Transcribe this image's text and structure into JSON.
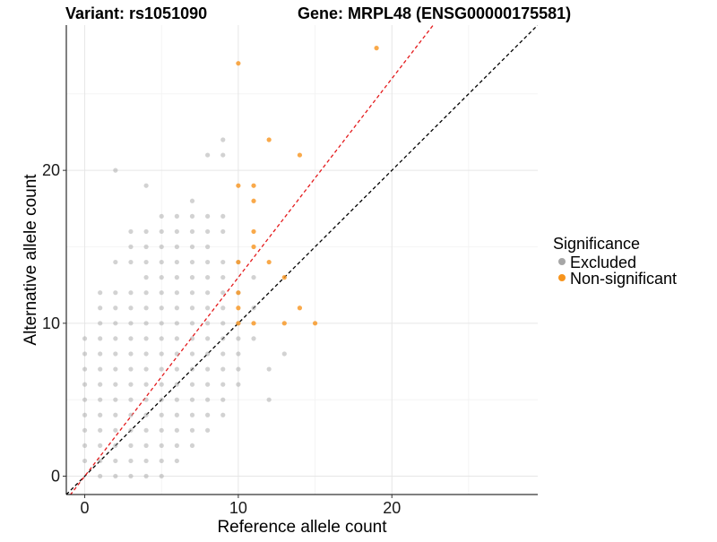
{
  "chart_data": {
    "type": "scatter",
    "title_left": "Variant: rs1051090",
    "title_right": "Gene: MRPL48 (ENSG00000175581)",
    "xlabel": "Reference allele count",
    "ylabel": "Alternative allele count",
    "xlim": [
      -1.2,
      29.5
    ],
    "ylim": [
      -1.2,
      29.5
    ],
    "x_ticks": [
      0,
      10,
      20
    ],
    "y_ticks": [
      0,
      10,
      20
    ],
    "grid": true,
    "legend": {
      "title": "Significance",
      "position": "right",
      "items": [
        {
          "label": "Excluded",
          "color": "#a6a6a6"
        },
        {
          "label": "Non-significant",
          "color": "#f7941d"
        }
      ]
    },
    "reference_lines": [
      {
        "name": "y = x",
        "slope": 1,
        "intercept": 0,
        "color": "#000000",
        "style": "dashed"
      },
      {
        "name": "fit",
        "slope": 1.3,
        "intercept": 0,
        "color": "#e41a1c",
        "style": "dashed"
      }
    ],
    "series": [
      {
        "name": "Excluded",
        "color": "#a6a6a6",
        "points": [
          [
            0,
            9
          ],
          [
            0,
            8
          ],
          [
            0,
            7
          ],
          [
            0,
            6
          ],
          [
            0,
            5
          ],
          [
            0,
            4
          ],
          [
            0,
            3
          ],
          [
            0,
            2
          ],
          [
            0,
            1
          ],
          [
            1,
            12
          ],
          [
            1,
            11
          ],
          [
            1,
            10
          ],
          [
            1,
            9
          ],
          [
            1,
            8
          ],
          [
            1,
            7
          ],
          [
            1,
            6
          ],
          [
            1,
            5
          ],
          [
            1,
            4
          ],
          [
            1,
            3
          ],
          [
            1,
            2
          ],
          [
            1,
            1
          ],
          [
            1,
            0
          ],
          [
            2,
            20
          ],
          [
            2,
            14
          ],
          [
            2,
            12
          ],
          [
            2,
            11
          ],
          [
            2,
            10
          ],
          [
            2,
            9
          ],
          [
            2,
            8
          ],
          [
            2,
            7
          ],
          [
            2,
            6
          ],
          [
            2,
            5
          ],
          [
            2,
            4
          ],
          [
            2,
            3
          ],
          [
            2,
            2
          ],
          [
            2,
            1
          ],
          [
            2,
            0
          ],
          [
            3,
            16
          ],
          [
            3,
            15
          ],
          [
            3,
            14
          ],
          [
            3,
            12
          ],
          [
            3,
            11
          ],
          [
            3,
            10
          ],
          [
            3,
            9
          ],
          [
            3,
            8
          ],
          [
            3,
            7
          ],
          [
            3,
            6
          ],
          [
            3,
            5
          ],
          [
            3,
            4
          ],
          [
            3,
            3
          ],
          [
            3,
            2
          ],
          [
            3,
            1
          ],
          [
            3,
            0
          ],
          [
            4,
            19
          ],
          [
            4,
            16
          ],
          [
            4,
            15
          ],
          [
            4,
            14
          ],
          [
            4,
            13
          ],
          [
            4,
            12
          ],
          [
            4,
            11
          ],
          [
            4,
            10
          ],
          [
            4,
            9
          ],
          [
            4,
            8
          ],
          [
            4,
            7
          ],
          [
            4,
            6
          ],
          [
            4,
            5
          ],
          [
            4,
            4
          ],
          [
            4,
            3
          ],
          [
            4,
            2
          ],
          [
            4,
            1
          ],
          [
            4,
            0
          ],
          [
            5,
            17
          ],
          [
            5,
            16
          ],
          [
            5,
            15
          ],
          [
            5,
            14
          ],
          [
            5,
            13
          ],
          [
            5,
            12
          ],
          [
            5,
            11
          ],
          [
            5,
            10
          ],
          [
            5,
            9
          ],
          [
            5,
            8
          ],
          [
            5,
            7
          ],
          [
            5,
            6
          ],
          [
            5,
            5
          ],
          [
            5,
            4
          ],
          [
            5,
            3
          ],
          [
            5,
            2
          ],
          [
            5,
            1
          ],
          [
            5,
            0
          ],
          [
            6,
            17
          ],
          [
            6,
            16
          ],
          [
            6,
            15
          ],
          [
            6,
            14
          ],
          [
            6,
            13
          ],
          [
            6,
            12
          ],
          [
            6,
            11
          ],
          [
            6,
            10
          ],
          [
            6,
            9
          ],
          [
            6,
            8
          ],
          [
            6,
            7
          ],
          [
            6,
            6
          ],
          [
            6,
            5
          ],
          [
            6,
            4
          ],
          [
            6,
            3
          ],
          [
            6,
            2
          ],
          [
            6,
            1
          ],
          [
            7,
            18
          ],
          [
            7,
            17
          ],
          [
            7,
            16
          ],
          [
            7,
            15
          ],
          [
            7,
            14
          ],
          [
            7,
            13
          ],
          [
            7,
            12
          ],
          [
            7,
            11
          ],
          [
            7,
            10
          ],
          [
            7,
            9
          ],
          [
            7,
            8
          ],
          [
            7,
            7
          ],
          [
            7,
            6
          ],
          [
            7,
            5
          ],
          [
            7,
            4
          ],
          [
            7,
            3
          ],
          [
            7,
            2
          ],
          [
            8,
            21
          ],
          [
            8,
            17
          ],
          [
            8,
            16
          ],
          [
            8,
            15
          ],
          [
            8,
            14
          ],
          [
            8,
            13
          ],
          [
            8,
            12
          ],
          [
            8,
            11
          ],
          [
            8,
            10
          ],
          [
            8,
            9
          ],
          [
            8,
            8
          ],
          [
            8,
            7
          ],
          [
            8,
            6
          ],
          [
            8,
            5
          ],
          [
            8,
            4
          ],
          [
            8,
            3
          ],
          [
            9,
            22
          ],
          [
            9,
            21
          ],
          [
            9,
            17
          ],
          [
            9,
            16
          ],
          [
            9,
            14
          ],
          [
            9,
            13
          ],
          [
            9,
            12
          ],
          [
            9,
            11
          ],
          [
            9,
            10
          ],
          [
            9,
            9
          ],
          [
            9,
            8
          ],
          [
            9,
            7
          ],
          [
            9,
            6
          ],
          [
            9,
            5
          ],
          [
            9,
            4
          ],
          [
            10,
            14
          ],
          [
            10,
            12
          ],
          [
            10,
            10
          ],
          [
            10,
            9
          ],
          [
            10,
            8
          ],
          [
            10,
            7
          ],
          [
            10,
            6
          ],
          [
            11,
            13
          ],
          [
            11,
            11
          ],
          [
            11,
            9
          ],
          [
            12,
            7
          ],
          [
            12,
            5
          ],
          [
            13,
            8
          ]
        ]
      },
      {
        "name": "Non-significant",
        "color": "#f7941d",
        "points": [
          [
            19,
            28
          ],
          [
            10,
            27
          ],
          [
            12,
            22
          ],
          [
            14,
            21
          ],
          [
            10,
            19
          ],
          [
            11,
            19
          ],
          [
            11,
            18
          ],
          [
            11,
            16
          ],
          [
            11,
            15
          ],
          [
            10,
            14
          ],
          [
            12,
            14
          ],
          [
            13,
            13
          ],
          [
            10,
            12
          ],
          [
            14,
            11
          ],
          [
            10,
            11
          ],
          [
            10,
            10
          ],
          [
            11,
            10
          ],
          [
            13,
            10
          ],
          [
            15,
            10
          ]
        ]
      }
    ]
  }
}
